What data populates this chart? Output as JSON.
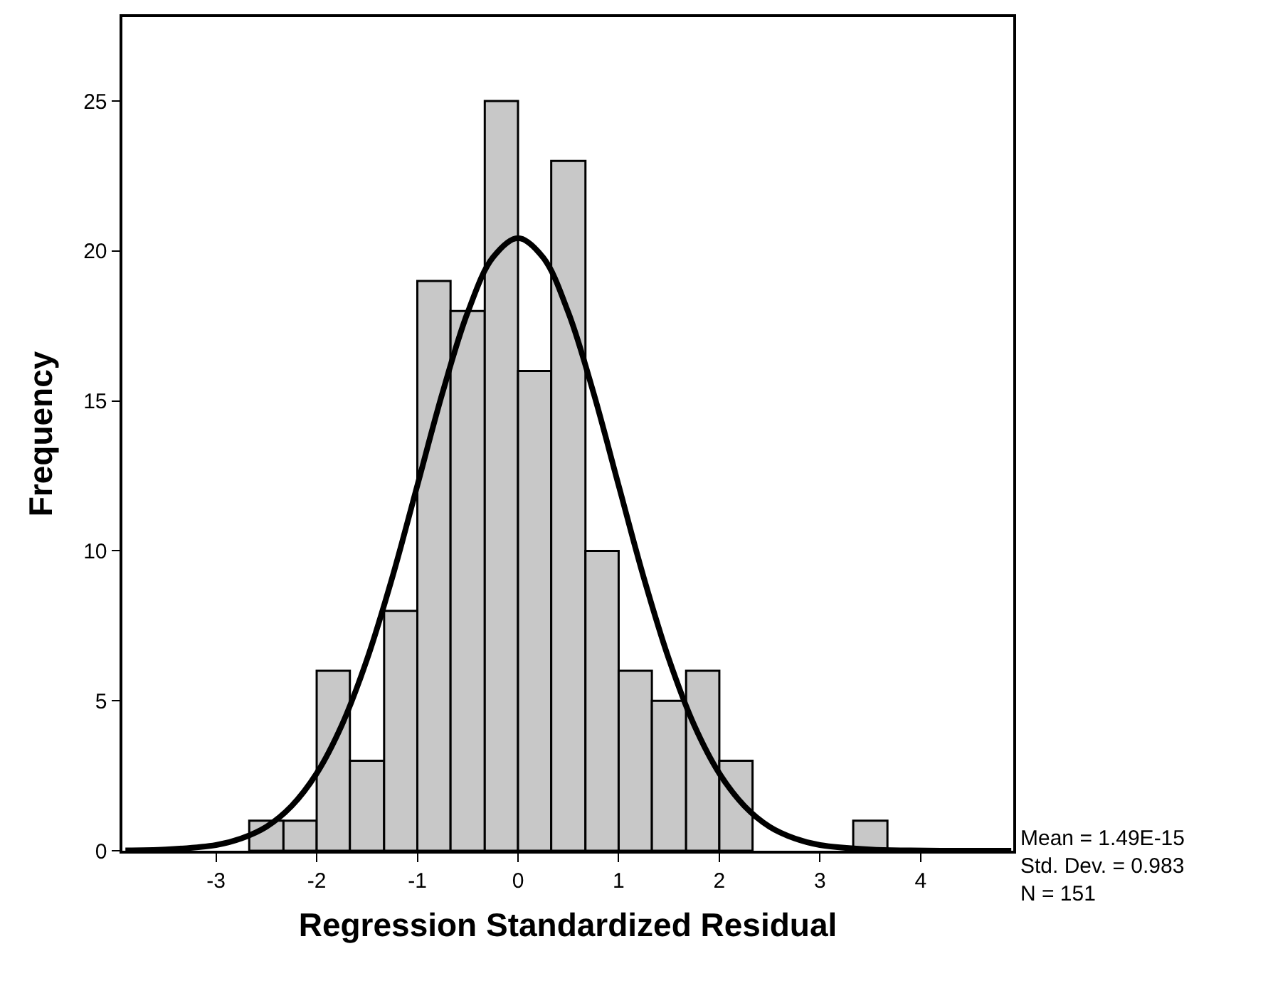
{
  "chart_data": {
    "type": "histogram",
    "xlabel": "Regression Standardized Residual",
    "ylabel": "Frequency",
    "bins": [
      -2.67,
      -2.33,
      -2,
      -1.67,
      -1.33,
      -1,
      -0.67,
      -0.33,
      0,
      0.33,
      0.67,
      1,
      1.33,
      1.67,
      2,
      2.33,
      3.33,
      3.67
    ],
    "values": [
      1,
      1,
      6,
      3,
      8,
      19,
      18,
      25,
      16,
      23,
      10,
      6,
      5,
      6,
      3,
      0,
      1
    ],
    "color": "#c8c8c8",
    "series": [
      {
        "type": "line",
        "color": "#000000",
        "x": [
          -3.9,
          -3.5,
          -3,
          -2.75,
          -2.5,
          -2.25,
          -2,
          -1.75,
          -1.5,
          -1.25,
          -1,
          -0.75,
          -0.5,
          -0.25,
          0,
          0.25,
          0.5,
          0.75,
          1,
          1.25,
          1.5,
          1.75,
          2,
          2.25,
          2.5,
          2.75,
          3,
          3.5,
          3.9,
          4.5,
          4.9
        ],
        "values": [
          0.01,
          0.04,
          0.19,
          0.41,
          0.8,
          1.49,
          2.58,
          4.19,
          6.38,
          9.1,
          12.18,
          15.27,
          17.95,
          19.78,
          20.43,
          19.78,
          17.95,
          15.27,
          12.18,
          9.1,
          6.38,
          4.19,
          2.58,
          1.49,
          0.8,
          0.41,
          0.19,
          0.04,
          0.01,
          0,
          0
        ]
      }
    ],
    "annotations": [
      "Mean = 1.49E-15\nStd. Dev. = 0.983\nN = 151"
    ],
    "xlim": [
      -3.93,
      4.92
    ],
    "ylim": [
      0,
      27.8
    ],
    "xticks": [
      -3,
      -2,
      -1,
      0,
      1,
      2,
      3,
      4
    ],
    "yticks": [
      0,
      5,
      10,
      15,
      20,
      25
    ],
    "marker": "none",
    "line_style": "solid"
  }
}
